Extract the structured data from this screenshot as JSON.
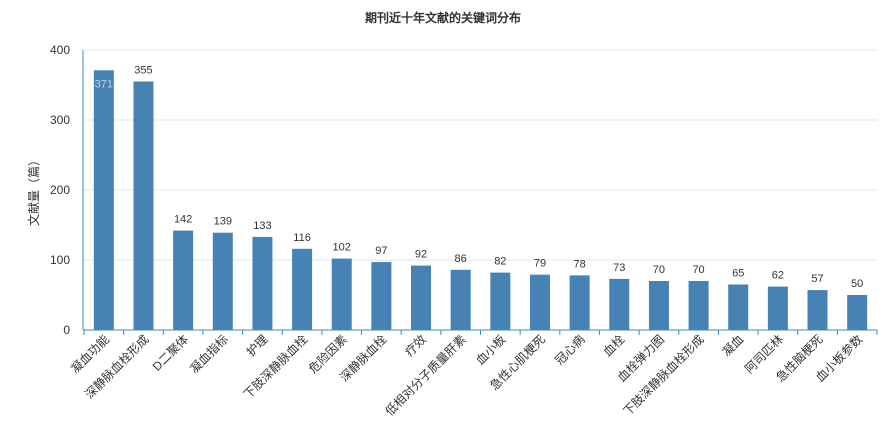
{
  "chart_data": {
    "type": "bar",
    "title": "期刊近十年文献的关键词分布",
    "ylabel": "文献量（篇）",
    "categories": [
      "凝血功能",
      "深静脉血栓形成",
      "D二聚体",
      "凝血指标",
      "护理",
      "下肢深静脉血栓",
      "危险因素",
      "深静脉血栓",
      "疗效",
      "低相对分子质量肝素",
      "血小板",
      "急性心肌梗死",
      "冠心病",
      "血栓",
      "血栓弹力图",
      "下肢深静脉血栓形成",
      "凝血",
      "阿司匹林",
      "急性脑梗死",
      "血小板参数"
    ],
    "values": [
      371,
      355,
      142,
      139,
      133,
      116,
      102,
      97,
      92,
      86,
      82,
      79,
      78,
      73,
      70,
      70,
      65,
      62,
      57,
      50
    ],
    "ylim": [
      0,
      400
    ],
    "yticks": [
      0,
      100,
      200,
      300,
      400
    ],
    "grid": true,
    "colors": {
      "bar": "#4682b4",
      "axis": "#3a8fb7",
      "grid": "#e4e4e4",
      "label_inside": "#c3d0dd"
    }
  }
}
